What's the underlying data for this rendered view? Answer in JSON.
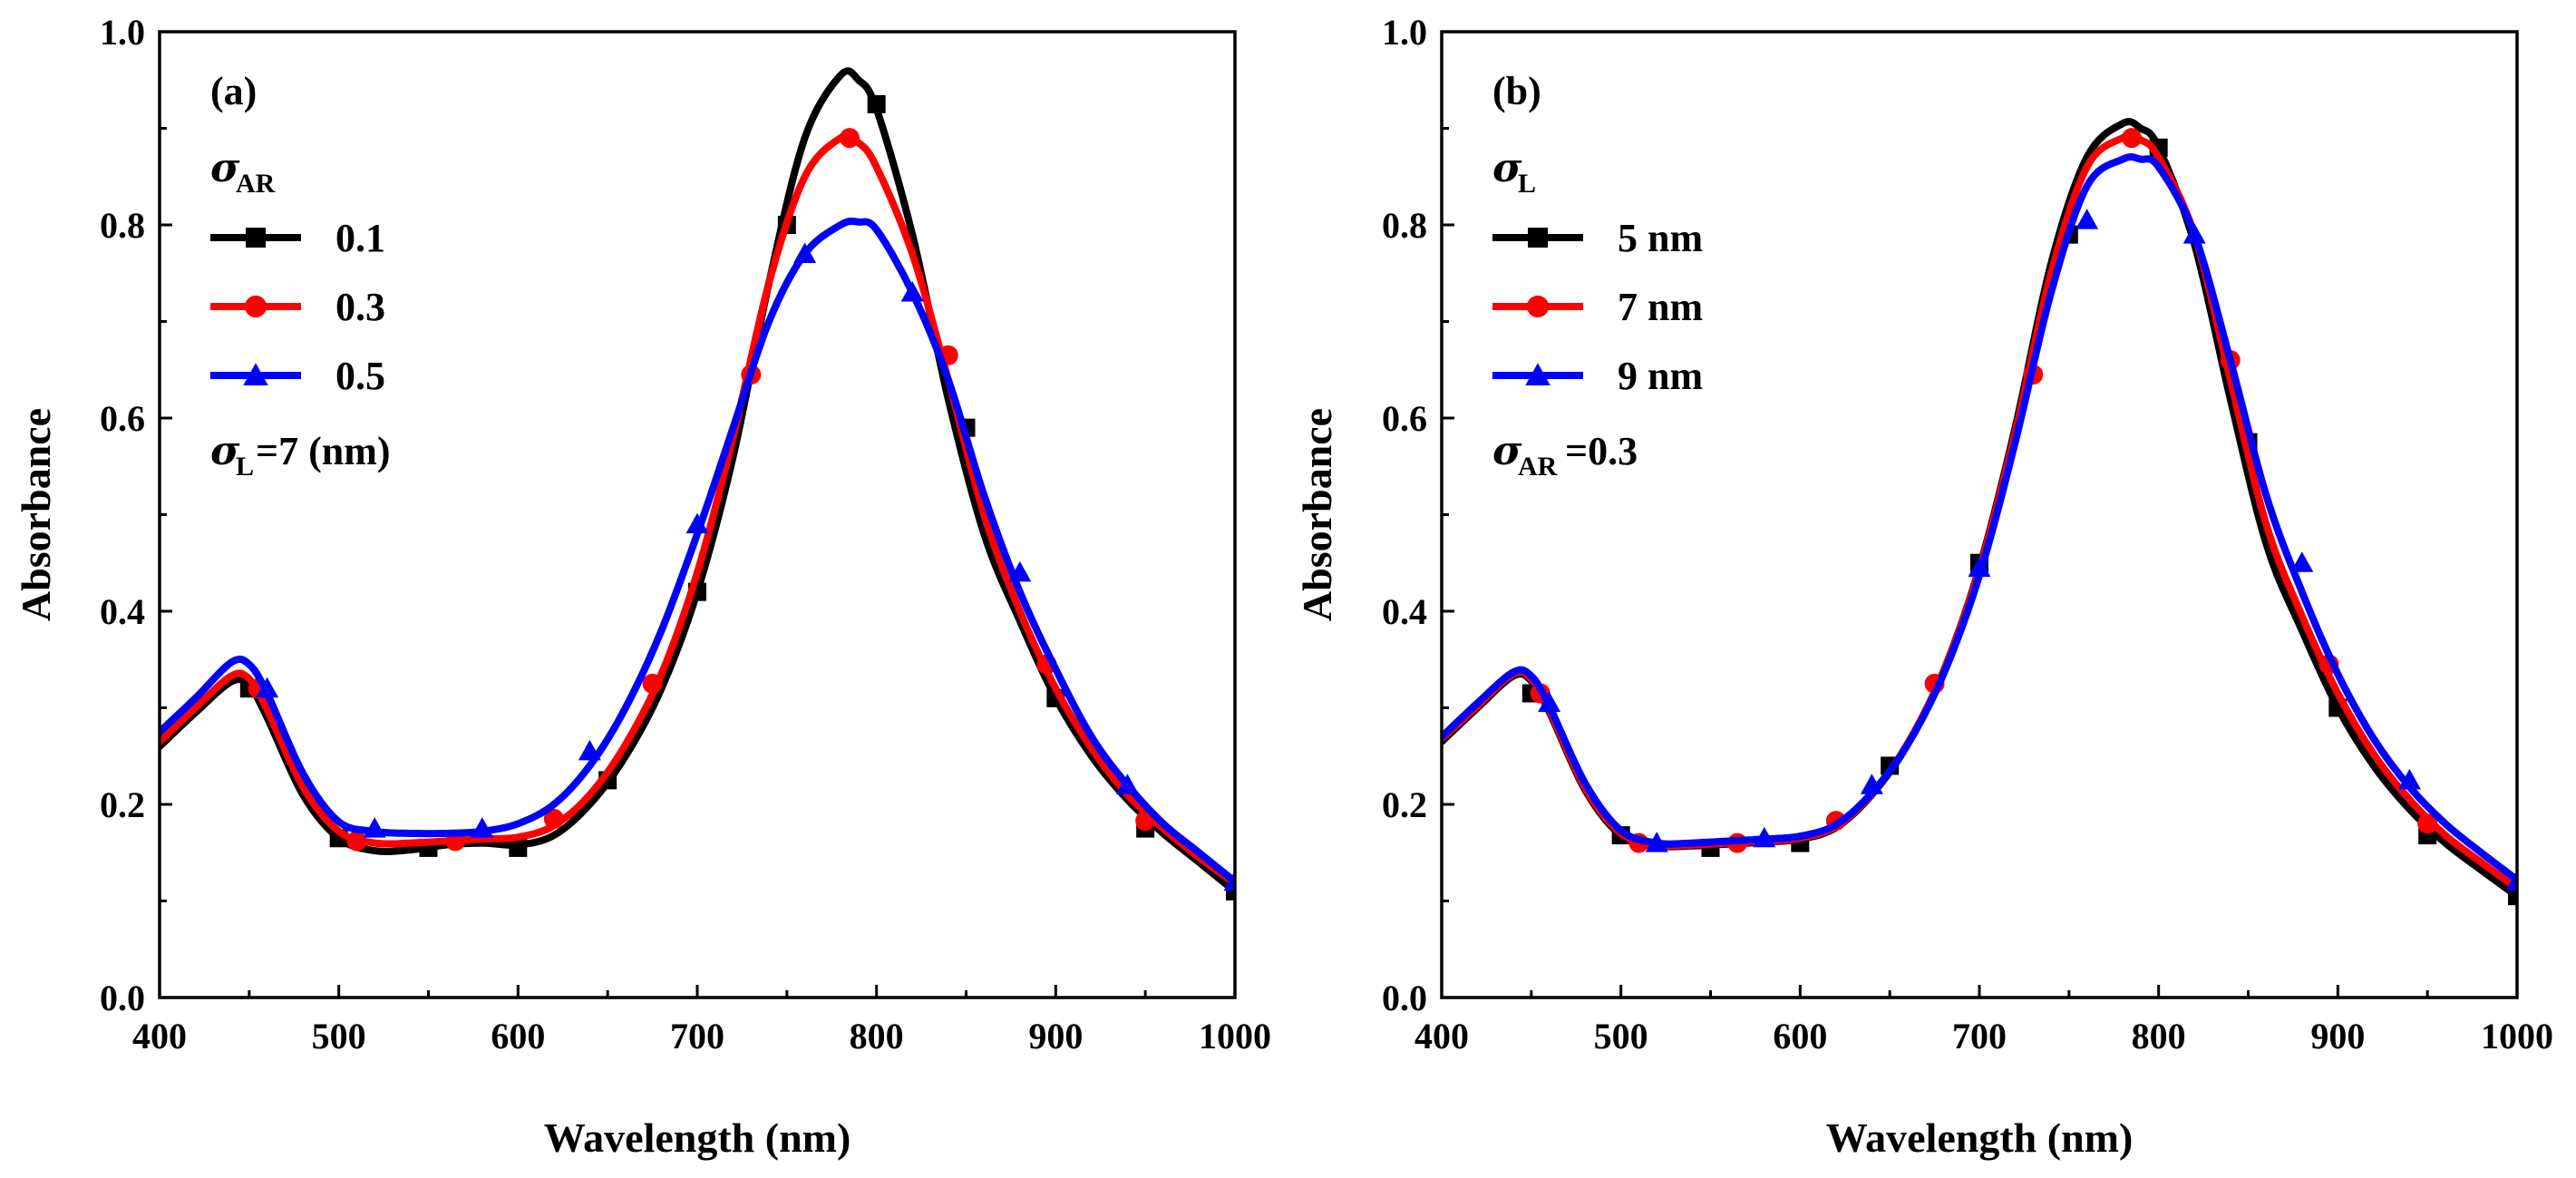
{
  "chart_data": [
    {
      "type": "line",
      "panel_label": "(a)",
      "xlabel": "Wavelength (nm)",
      "ylabel": "Absorbance",
      "xlim": [
        400,
        1000
      ],
      "ylim": [
        0.0,
        1.0
      ],
      "xticks": [
        "400",
        "500",
        "600",
        "700",
        "800",
        "900",
        "1000"
      ],
      "yticks": [
        "0.0",
        "0.2",
        "0.4",
        "0.6",
        "0.8",
        "1.0"
      ],
      "legend_title": "σ",
      "legend_title_sub": "AR",
      "note_sigma": "σ",
      "note_sub": "L",
      "note_rest": "=7 (nm)",
      "legend_position": "top-left",
      "series": [
        {
          "name": "0.1",
          "color": "#000000",
          "marker": "square",
          "x": [
            400,
            420,
            440,
            450,
            460,
            480,
            500,
            520,
            540,
            560,
            580,
            600,
            620,
            640,
            660,
            680,
            700,
            720,
            740,
            760,
            780,
            790,
            800,
            820,
            840,
            860,
            880,
            900,
            920,
            940,
            960,
            980,
            1000
          ],
          "y": [
            0.26,
            0.295,
            0.327,
            0.323,
            0.29,
            0.21,
            0.165,
            0.152,
            0.153,
            0.158,
            0.16,
            0.158,
            0.168,
            0.2,
            0.25,
            0.32,
            0.42,
            0.56,
            0.74,
            0.89,
            0.955,
            0.95,
            0.92,
            0.79,
            0.62,
            0.48,
            0.39,
            0.31,
            0.25,
            0.205,
            0.17,
            0.14,
            0.11
          ],
          "marker_x": [
            450,
            500,
            550,
            600,
            650,
            700,
            750,
            800,
            850,
            900,
            950,
            1000
          ],
          "marker_y": [
            0.32,
            0.165,
            0.155,
            0.155,
            0.225,
            0.42,
            0.8,
            0.925,
            0.59,
            0.31,
            0.175,
            0.11
          ]
        },
        {
          "name": "0.3",
          "color": "#ff0000",
          "marker": "circle",
          "x": [
            400,
            420,
            440,
            450,
            460,
            480,
            500,
            520,
            540,
            560,
            580,
            600,
            620,
            640,
            660,
            680,
            700,
            720,
            740,
            760,
            780,
            790,
            800,
            820,
            840,
            860,
            880,
            900,
            920,
            940,
            960,
            980,
            1000
          ],
          "y": [
            0.265,
            0.3,
            0.333,
            0.33,
            0.298,
            0.218,
            0.172,
            0.16,
            0.16,
            0.162,
            0.164,
            0.166,
            0.178,
            0.21,
            0.262,
            0.335,
            0.44,
            0.58,
            0.74,
            0.85,
            0.89,
            0.885,
            0.86,
            0.77,
            0.64,
            0.5,
            0.4,
            0.32,
            0.258,
            0.21,
            0.175,
            0.145,
            0.118
          ],
          "marker_x": [
            455,
            510,
            565,
            620,
            675,
            730,
            785,
            840,
            895,
            950
          ],
          "marker_y": [
            0.32,
            0.162,
            0.162,
            0.185,
            0.325,
            0.645,
            0.89,
            0.665,
            0.345,
            0.183
          ]
        },
        {
          "name": "0.5",
          "color": "#0000ff",
          "marker": "triangle",
          "x": [
            400,
            420,
            440,
            450,
            460,
            480,
            500,
            520,
            540,
            560,
            580,
            600,
            620,
            640,
            660,
            680,
            700,
            720,
            740,
            760,
            780,
            790,
            800,
            820,
            840,
            860,
            880,
            900,
            920,
            940,
            960,
            980,
            1000
          ],
          "y": [
            0.275,
            0.31,
            0.347,
            0.345,
            0.315,
            0.232,
            0.182,
            0.172,
            0.17,
            0.17,
            0.172,
            0.18,
            0.2,
            0.24,
            0.3,
            0.38,
            0.48,
            0.59,
            0.7,
            0.77,
            0.8,
            0.803,
            0.795,
            0.73,
            0.64,
            0.52,
            0.42,
            0.34,
            0.27,
            0.22,
            0.18,
            0.15,
            0.12
          ],
          "marker_x": [
            460,
            520,
            580,
            640,
            700,
            760,
            820,
            880,
            940,
            1000
          ],
          "marker_y": [
            0.32,
            0.175,
            0.175,
            0.255,
            0.49,
            0.77,
            0.73,
            0.44,
            0.22,
            0.12
          ]
        }
      ]
    },
    {
      "type": "line",
      "panel_label": "(b)",
      "xlabel": "Wavelength (nm)",
      "ylabel": "Absorbance",
      "xlim": [
        400,
        1000
      ],
      "ylim": [
        0.0,
        1.0
      ],
      "xticks": [
        "400",
        "500",
        "600",
        "700",
        "800",
        "900",
        "1000"
      ],
      "yticks": [
        "0.0",
        "0.2",
        "0.4",
        "0.6",
        "0.8",
        "1.0"
      ],
      "legend_title": "σ",
      "legend_title_sub": "L",
      "note_sigma": "σ",
      "note_sub": "AR",
      "note_rest": "=0.3",
      "legend_position": "top-left",
      "series": [
        {
          "name": "5 nm",
          "color": "#000000",
          "marker": "square",
          "x": [
            400,
            420,
            440,
            450,
            460,
            480,
            500,
            520,
            540,
            560,
            580,
            600,
            620,
            640,
            660,
            680,
            700,
            720,
            740,
            760,
            780,
            790,
            800,
            820,
            840,
            860,
            880,
            900,
            920,
            940,
            960,
            980,
            1000
          ],
          "y": [
            0.265,
            0.3,
            0.333,
            0.328,
            0.296,
            0.215,
            0.168,
            0.157,
            0.157,
            0.159,
            0.161,
            0.164,
            0.176,
            0.21,
            0.262,
            0.338,
            0.445,
            0.59,
            0.76,
            0.87,
            0.905,
            0.9,
            0.88,
            0.78,
            0.62,
            0.47,
            0.38,
            0.3,
            0.24,
            0.195,
            0.16,
            0.132,
            0.105
          ],
          "marker_x": [
            450,
            500,
            550,
            600,
            650,
            700,
            750,
            800,
            850,
            900,
            950,
            1000
          ],
          "marker_y": [
            0.315,
            0.168,
            0.155,
            0.16,
            0.24,
            0.45,
            0.79,
            0.88,
            0.575,
            0.3,
            0.168,
            0.105
          ]
        },
        {
          "name": "7 nm",
          "color": "#ff0000",
          "marker": "circle",
          "x": [
            400,
            420,
            440,
            450,
            460,
            480,
            500,
            520,
            540,
            560,
            580,
            600,
            620,
            640,
            660,
            680,
            700,
            720,
            740,
            760,
            780,
            790,
            800,
            820,
            840,
            860,
            880,
            900,
            920,
            940,
            960,
            980,
            1000
          ],
          "y": [
            0.268,
            0.302,
            0.335,
            0.33,
            0.298,
            0.217,
            0.17,
            0.158,
            0.158,
            0.16,
            0.162,
            0.165,
            0.177,
            0.211,
            0.263,
            0.338,
            0.443,
            0.585,
            0.75,
            0.86,
            0.89,
            0.888,
            0.87,
            0.79,
            0.64,
            0.49,
            0.395,
            0.315,
            0.252,
            0.205,
            0.168,
            0.14,
            0.113
          ],
          "marker_x": [
            455,
            510,
            565,
            620,
            675,
            730,
            785,
            840,
            895,
            950
          ],
          "marker_y": [
            0.315,
            0.16,
            0.16,
            0.183,
            0.325,
            0.645,
            0.89,
            0.66,
            0.345,
            0.18
          ]
        },
        {
          "name": "9 nm",
          "color": "#0000ff",
          "marker": "triangle",
          "x": [
            400,
            420,
            440,
            450,
            460,
            480,
            500,
            520,
            540,
            560,
            580,
            600,
            620,
            640,
            660,
            680,
            700,
            720,
            740,
            760,
            780,
            790,
            800,
            820,
            840,
            860,
            880,
            900,
            920,
            940,
            960,
            980,
            1000
          ],
          "y": [
            0.27,
            0.305,
            0.337,
            0.333,
            0.302,
            0.222,
            0.173,
            0.16,
            0.16,
            0.162,
            0.164,
            0.167,
            0.179,
            0.212,
            0.262,
            0.335,
            0.437,
            0.575,
            0.73,
            0.84,
            0.868,
            0.868,
            0.86,
            0.79,
            0.66,
            0.52,
            0.42,
            0.335,
            0.268,
            0.218,
            0.18,
            0.15,
            0.122
          ],
          "marker_x": [
            460,
            520,
            580,
            640,
            700,
            760,
            820,
            880,
            940,
            1000
          ],
          "marker_y": [
            0.305,
            0.16,
            0.165,
            0.22,
            0.445,
            0.805,
            0.79,
            0.45,
            0.225,
            0.12
          ]
        }
      ]
    }
  ]
}
